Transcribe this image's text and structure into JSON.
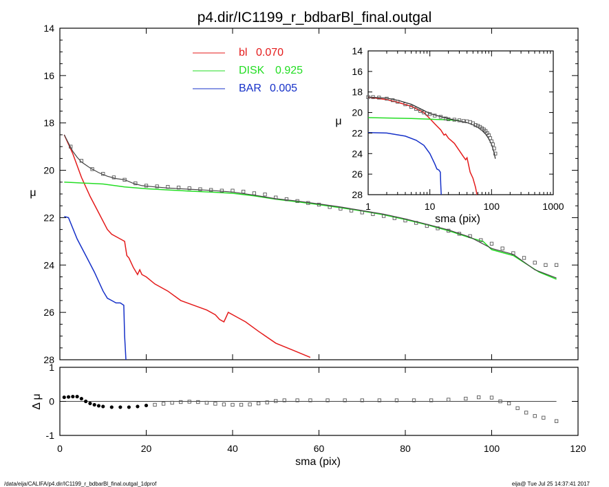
{
  "title": "p4.dir/IC1199_r_bdbarBl_final.outgal",
  "footer_left": "/data/eija/CALIFA/p4.dir/IC1199_r_bdbarBl_final.outgal_1dprof",
  "footer_right": "eija@  Tue Jul 25 14:37:41 2017",
  "colors": {
    "bl": "#e41a1a",
    "disk": "#22dd22",
    "bar": "#1530c8",
    "data": "#555555"
  },
  "chart_data": [
    {
      "type": "line",
      "panel": "main",
      "xlabel": "sma (pix)",
      "ylabel": "μ",
      "xlim": [
        0,
        120
      ],
      "ylim": [
        28,
        14
      ],
      "xticks": [
        "0",
        "20",
        "40",
        "60",
        "80",
        "100",
        "120"
      ],
      "yticks": [
        "14",
        "16",
        "18",
        "20",
        "22",
        "24",
        "26",
        "28"
      ],
      "legend": [
        {
          "label": "bl",
          "value": "0.070",
          "color": "#e41a1a"
        },
        {
          "label": "DISK",
          "value": "0.925",
          "color": "#22dd22"
        },
        {
          "label": "BAR",
          "value": "0.005",
          "color": "#1530c8"
        }
      ],
      "series": [
        {
          "name": "bl",
          "color": "#e41a1a",
          "x": [
            1,
            3,
            5,
            7,
            9,
            11,
            12,
            14,
            15,
            15.5,
            16,
            17,
            18,
            18.5,
            19,
            20,
            22,
            25,
            28,
            31,
            34,
            36,
            37,
            38,
            38.5,
            39,
            41,
            43,
            46,
            50,
            54,
            58
          ],
          "y": [
            18.5,
            19.3,
            20.3,
            21.1,
            21.8,
            22.5,
            22.7,
            22.9,
            23.0,
            23.6,
            23.7,
            24.1,
            24.4,
            24.2,
            24.4,
            24.5,
            24.8,
            25.1,
            25.5,
            25.7,
            25.9,
            26.1,
            26.3,
            26.4,
            26.2,
            26.0,
            26.2,
            26.4,
            26.8,
            27.3,
            27.6,
            27.9
          ]
        },
        {
          "name": "DISK",
          "color": "#22dd22",
          "x": [
            1,
            10,
            15,
            20,
            25,
            30,
            35,
            40,
            45,
            50,
            55,
            60,
            65,
            70,
            75,
            80,
            85,
            90,
            95,
            98,
            100,
            103,
            105,
            108,
            111,
            115
          ],
          "y": [
            20.5,
            20.58,
            20.7,
            20.78,
            20.83,
            20.88,
            20.92,
            20.97,
            21.08,
            21.22,
            21.33,
            21.45,
            21.58,
            21.72,
            21.88,
            22.08,
            22.3,
            22.55,
            22.85,
            23.0,
            23.35,
            23.5,
            23.6,
            23.95,
            24.3,
            24.6
          ]
        },
        {
          "name": "BAR",
          "color": "#1530c8",
          "x": [
            1,
            2,
            4,
            6,
            8,
            10,
            11,
            12,
            13,
            14,
            14.8,
            15,
            15.3
          ],
          "y": [
            21.95,
            22.0,
            22.9,
            23.6,
            24.3,
            25.1,
            25.4,
            25.5,
            25.6,
            25.6,
            25.7,
            27.0,
            28.0
          ]
        },
        {
          "name": "model",
          "color": "#444444",
          "x": [
            1,
            2,
            3,
            4,
            5,
            7,
            9,
            11,
            13,
            15,
            17,
            19,
            22,
            25,
            30,
            35,
            40,
            45,
            50,
            55,
            60,
            65,
            70,
            75,
            80,
            85,
            90,
            95,
            100,
            105,
            110,
            115
          ],
          "y": [
            18.5,
            18.85,
            19.2,
            19.45,
            19.65,
            19.9,
            20.1,
            20.25,
            20.35,
            20.4,
            20.55,
            20.65,
            20.7,
            20.75,
            20.8,
            20.85,
            20.92,
            21.05,
            21.2,
            21.3,
            21.42,
            21.55,
            21.7,
            21.85,
            22.05,
            22.28,
            22.52,
            22.82,
            23.3,
            23.55,
            24.2,
            24.55
          ]
        },
        {
          "name": "data",
          "color": "#555555",
          "x": [
            2.5,
            5,
            7.5,
            10,
            12.5,
            15,
            17.5,
            20,
            22.5,
            25,
            27.5,
            30,
            32.5,
            35,
            37.5,
            40,
            42.5,
            45,
            47.5,
            50,
            52.5,
            55,
            57.5,
            60,
            62.5,
            65,
            67.5,
            70,
            72.5,
            75,
            77.5,
            80,
            82.5,
            85,
            87.5,
            90,
            92.5,
            95,
            97.5,
            100,
            102.5,
            105,
            107.5,
            110,
            112.5,
            115
          ],
          "y": [
            19.0,
            19.6,
            19.95,
            20.15,
            20.3,
            20.4,
            20.55,
            20.65,
            20.68,
            20.7,
            20.73,
            20.76,
            20.8,
            20.83,
            20.86,
            20.86,
            20.9,
            20.97,
            21.02,
            21.15,
            21.22,
            21.3,
            21.38,
            21.45,
            21.55,
            21.62,
            21.7,
            21.78,
            21.85,
            21.93,
            22.02,
            22.12,
            22.22,
            22.35,
            22.45,
            22.55,
            22.68,
            22.78,
            22.95,
            23.1,
            23.3,
            23.5,
            23.7,
            23.9,
            24.0,
            24.0
          ]
        }
      ]
    },
    {
      "type": "scatter",
      "panel": "residual",
      "xlabel": "sma (pix)",
      "ylabel": "Δ μ",
      "xlim": [
        0,
        120
      ],
      "ylim": [
        -1,
        1
      ],
      "xticks": [
        "0",
        "20",
        "40",
        "60",
        "80",
        "100",
        "120"
      ],
      "yticks": [
        "1",
        "0",
        "-1"
      ],
      "series": [
        {
          "name": "residual",
          "x": [
            1,
            2,
            3,
            4,
            5,
            6,
            7,
            8,
            9,
            10,
            12,
            14,
            16,
            18,
            20,
            22,
            24,
            26,
            28,
            30,
            32,
            34,
            36,
            38,
            40,
            42,
            44,
            46,
            48,
            50,
            52,
            55,
            58,
            62,
            66,
            70,
            74,
            78,
            82,
            86,
            90,
            94,
            97,
            100,
            102,
            104,
            106,
            108,
            110,
            112,
            115
          ],
          "y": [
            0.12,
            0.13,
            0.14,
            0.14,
            0.08,
            0.0,
            -0.06,
            -0.1,
            -0.13,
            -0.15,
            -0.17,
            -0.17,
            -0.17,
            -0.15,
            -0.12,
            -0.1,
            -0.07,
            -0.04,
            -0.02,
            -0.01,
            -0.02,
            -0.04,
            -0.07,
            -0.09,
            -0.1,
            -0.1,
            -0.09,
            -0.06,
            -0.03,
            0.01,
            0.03,
            0.03,
            0.03,
            0.03,
            0.03,
            0.03,
            0.03,
            0.03,
            0.03,
            0.03,
            0.05,
            0.08,
            0.12,
            0.11,
            0.0,
            -0.06,
            -0.2,
            -0.33,
            -0.43,
            -0.48,
            -0.58
          ]
        }
      ]
    },
    {
      "type": "line",
      "panel": "inset",
      "xscale": "log",
      "xlabel": "sma (pix)",
      "ylabel": "μ",
      "xlim": [
        1,
        1000
      ],
      "ylim": [
        28,
        14
      ],
      "xticks": [
        "1",
        "10",
        "100",
        "1000"
      ],
      "yticks": [
        "14",
        "16",
        "18",
        "20",
        "22",
        "24",
        "26",
        "28"
      ],
      "series": [
        {
          "name": "bl",
          "color": "#e41a1a",
          "x": [
            1,
            2,
            3,
            5,
            8,
            10,
            12,
            15,
            17,
            18,
            20,
            25,
            30,
            35,
            38,
            40,
            45,
            50,
            55,
            58
          ],
          "y": [
            18.5,
            18.75,
            19.0,
            19.4,
            20.0,
            20.6,
            21.1,
            21.7,
            22.2,
            22.1,
            22.5,
            23.0,
            23.7,
            24.3,
            24.6,
            24.4,
            25.8,
            26.4,
            27.3,
            28.0
          ]
        },
        {
          "name": "DISK",
          "color": "#22dd22",
          "x": [
            1,
            5,
            10,
            20,
            30
          ],
          "y": [
            20.5,
            20.58,
            20.65,
            20.72,
            20.78
          ]
        },
        {
          "name": "BAR",
          "color": "#1530c8",
          "x": [
            1,
            2,
            4,
            6,
            8,
            10,
            12,
            13,
            14,
            14.8,
            15,
            15.3
          ],
          "y": [
            21.95,
            22.0,
            22.3,
            22.7,
            23.2,
            24.0,
            25.0,
            25.5,
            25.6,
            25.8,
            27.0,
            28.0
          ]
        },
        {
          "name": "model",
          "color": "#222222",
          "x": [
            1,
            2,
            3,
            5,
            8,
            10,
            15,
            20,
            30,
            40,
            50,
            60,
            70,
            80,
            90,
            100,
            110,
            115
          ],
          "y": [
            18.5,
            18.6,
            18.8,
            19.2,
            19.8,
            20.1,
            20.4,
            20.6,
            20.82,
            20.98,
            21.2,
            21.45,
            21.75,
            22.1,
            22.55,
            23.1,
            23.9,
            24.5
          ]
        },
        {
          "name": "data",
          "color": "#555555",
          "x": [
            1,
            1.2,
            1.5,
            2,
            2.5,
            3,
            4,
            5,
            6,
            7,
            8,
            9,
            10,
            12,
            15,
            18,
            20,
            25,
            30,
            35,
            40,
            45,
            50,
            55,
            60,
            65,
            70,
            75,
            80,
            85,
            90,
            95,
            100,
            105,
            110,
            115
          ],
          "y": [
            18.5,
            18.5,
            18.55,
            18.65,
            18.8,
            18.95,
            19.2,
            19.45,
            19.65,
            19.85,
            20.0,
            20.1,
            20.15,
            20.3,
            20.42,
            20.58,
            20.65,
            20.7,
            20.76,
            20.83,
            20.86,
            20.93,
            21.05,
            21.22,
            21.3,
            21.4,
            21.55,
            21.65,
            21.8,
            22.0,
            22.2,
            22.5,
            22.8,
            23.1,
            23.5,
            24.0
          ]
        }
      ]
    }
  ]
}
